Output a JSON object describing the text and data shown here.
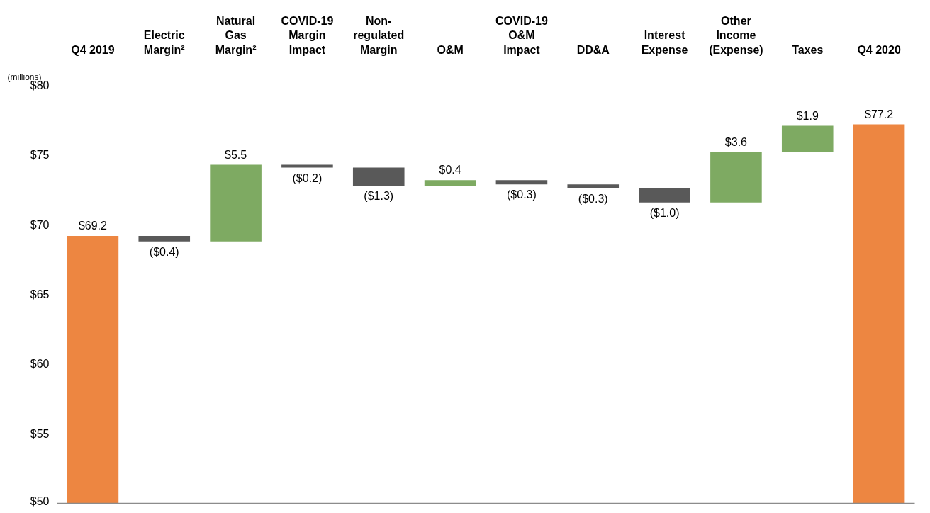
{
  "chart_data": {
    "type": "bar",
    "ylabel": "(millions)",
    "categories": [
      "Q4 2019",
      "Electric Margin²",
      "Natural Gas Margin²",
      "COVID-19 Margin Impact",
      "Non-regulated Margin",
      "O&M",
      "COVID-19 O&M Impact",
      "DD&A",
      "Interest Expense",
      "Other Income (Expense)",
      "Taxes",
      "Q4 2020"
    ],
    "values": [
      69.2,
      -0.4,
      5.5,
      -0.2,
      -1.3,
      0.4,
      -0.3,
      -0.3,
      -1.0,
      3.6,
      1.9,
      77.2
    ],
    "base": [
      null,
      69.2,
      68.8,
      74.3,
      74.1,
      72.8,
      73.2,
      72.9,
      72.6,
      71.6,
      75.2,
      null
    ],
    "colors": [
      "#ed8641",
      "#595959",
      "#7eaa62",
      "#595959",
      "#595959",
      "#7eaa62",
      "#595959",
      "#595959",
      "#595959",
      "#7eaa62",
      "#7eaa62",
      "#ed8641"
    ],
    "value_labels": [
      "$69.2",
      "($0.4)",
      "$5.5",
      "($0.2)",
      "($1.3)",
      "$0.4",
      "($0.3)",
      "($0.3)",
      "($1.0)",
      "$3.6",
      "$1.9",
      "$77.2"
    ],
    "ylim": [
      50,
      80
    ],
    "yticks": [
      {
        "value": 50,
        "label": "$50"
      },
      {
        "value": 55,
        "label": "$55"
      },
      {
        "value": 60,
        "label": "$60"
      },
      {
        "value": 65,
        "label": "$65"
      },
      {
        "value": 70,
        "label": "$70"
      },
      {
        "value": 75,
        "label": "$75"
      },
      {
        "value": 80,
        "label": "$80"
      }
    ],
    "grid": false
  }
}
